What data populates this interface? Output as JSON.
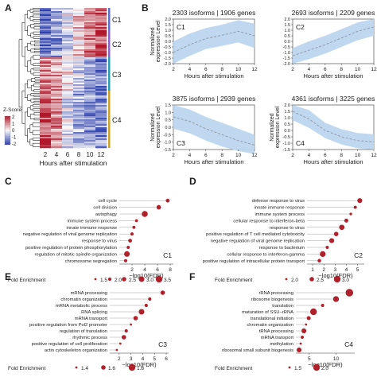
{
  "panel_letters": [
    "A",
    "B",
    "C",
    "D",
    "E",
    "F"
  ],
  "heatmap": {
    "x_ticks": [
      "2",
      "4",
      "6",
      "8",
      "10",
      "12"
    ],
    "xlabel": "Hours after stimulation",
    "legend_title": "Z-Score",
    "legend_ticks": [
      "2",
      "1",
      "0",
      "-1",
      "-2"
    ],
    "clusters": [
      {
        "label": "C1",
        "color": "#5b6fc9",
        "share": 0.16
      },
      {
        "label": "C2",
        "color": "#8a63c7",
        "share": 0.19
      },
      {
        "label": "C3",
        "color": "#2b9bb0",
        "share": 0.24
      },
      {
        "label": "C4",
        "color": "#c9a227",
        "share": 0.41
      }
    ],
    "colors": {
      "high": "#b2182b",
      "mid": "#f7f7f7",
      "low": "#2c3fae"
    }
  },
  "colors": {
    "band": "#bcd6ef",
    "mean_line": "#8f9aa8",
    "dot": "#b0212b",
    "stem": "#888888"
  },
  "chart_data": [
    {
      "type": "line",
      "cluster": "C1",
      "title": "2303 isoforms | 1906 genes",
      "xlabel": "Hours after stimulation",
      "ylabel": "Normalized expression Level",
      "x": [
        2,
        4,
        6,
        8,
        10,
        12
      ],
      "mean": [
        -1.0,
        -0.3,
        0.25,
        0.55,
        0.9,
        0.5
      ],
      "lower": [
        -2.0,
        -1.3,
        -0.7,
        -0.4,
        -0.1,
        -0.6
      ],
      "upper": [
        0.0,
        0.7,
        1.2,
        1.5,
        1.9,
        1.6
      ],
      "xlim": [
        2,
        12
      ],
      "ylim": [
        -2,
        2
      ],
      "x_ticks": [
        "2",
        "4",
        "6",
        "8",
        "10",
        "12"
      ],
      "y_ticks": [
        "-2.0",
        "-1.5",
        "-1.0",
        "-0.5",
        "0.0",
        "0.5",
        "1.0",
        "1.5",
        "2.0"
      ]
    },
    {
      "type": "line",
      "cluster": "C2",
      "title": "2693 isoforms | 2209 genes",
      "xlabel": "Hours after stimulation",
      "ylabel": "",
      "x": [
        2,
        4,
        6,
        8,
        10,
        12
      ],
      "mean": [
        -1.3,
        -0.8,
        -0.3,
        0.3,
        0.9,
        1.3
      ],
      "lower": [
        -2.0,
        -1.6,
        -1.1,
        -0.5,
        0.1,
        0.5
      ],
      "upper": [
        -0.6,
        0.0,
        0.5,
        1.1,
        1.7,
        2.0
      ],
      "xlim": [
        2,
        12
      ],
      "ylim": [
        -2,
        2
      ],
      "x_ticks": [
        "2",
        "4",
        "6",
        "8",
        "10",
        "12"
      ],
      "y_ticks": [
        "-2.0",
        "-1.5",
        "-1.0",
        "-0.5",
        "0.0",
        "0.5",
        "1.0",
        "1.5",
        "2.0"
      ]
    },
    {
      "type": "line",
      "cluster": "C3",
      "title": "3875 isoforms | 2939 genes",
      "xlabel": "Hours after stimulation",
      "ylabel": "Normalized expression Level",
      "x": [
        2,
        4,
        6,
        8,
        10,
        12
      ],
      "mean": [
        0.7,
        0.4,
        -0.1,
        -0.5,
        -0.9,
        -1.2
      ],
      "lower": [
        -0.1,
        -0.4,
        -0.9,
        -1.3,
        -1.6,
        -1.8
      ],
      "upper": [
        1.5,
        1.2,
        0.7,
        0.3,
        -0.1,
        -0.5
      ],
      "xlim": [
        2,
        12
      ],
      "ylim": [
        -1.5,
        1.5
      ],
      "x_ticks": [
        "2",
        "4",
        "6",
        "8",
        "10",
        "12"
      ],
      "y_ticks": [
        "-1.5",
        "-1.0",
        "-0.5",
        "0.0",
        "0.5",
        "1.0",
        "1.5"
      ]
    },
    {
      "type": "line",
      "cluster": "C4",
      "title": "4361 isoforms | 3225 genes",
      "xlabel": "Hours after stimulation",
      "ylabel": "Normalized expression Level",
      "x": [
        2,
        4,
        6,
        8,
        10,
        12
      ],
      "mean": [
        1.5,
        0.9,
        0.0,
        -0.5,
        -0.8,
        -0.9
      ],
      "lower": [
        0.8,
        0.2,
        -0.6,
        -1.1,
        -1.4,
        -1.5
      ],
      "upper": [
        2.0,
        1.6,
        0.6,
        0.1,
        -0.2,
        -0.3
      ],
      "xlim": [
        2,
        12
      ],
      "ylim": [
        -1.5,
        2.0
      ],
      "x_ticks": [
        "2",
        "4",
        "6",
        "8",
        "10",
        "12"
      ],
      "y_ticks": [
        "-1.5",
        "-1.0",
        "-0.5",
        "0.0",
        "0.5",
        "1.0",
        "1.5",
        "2.0"
      ]
    },
    {
      "type": "scatter",
      "cluster": "C1",
      "xlabel": "−log10(FDR)",
      "categories": [
        "cell cycle",
        "cell division",
        "autophagy",
        "immune system process",
        "innate immune response",
        "negative regulation of viral genome replication",
        "response to virus",
        "positive regulation of protein phosphorylation",
        "regulation of mitotic spindle organization",
        "chromosome segregation"
      ],
      "values": [
        7.6,
        6.2,
        4.0,
        2.7,
        2.3,
        2.0,
        1.7,
        1.4,
        1.2,
        1.0
      ],
      "fold_enrichment": [
        2.2,
        2.5,
        3.2,
        1.8,
        1.9,
        2.0,
        2.2,
        1.9,
        3.0,
        2.0
      ],
      "xlim": [
        0,
        8.5
      ],
      "x_ticks": [
        "2",
        "4",
        "6",
        "8"
      ],
      "legend_title": "Fold Enrichment",
      "legend_values": [
        "1.5",
        "2.0",
        "2.5",
        "3.0",
        "3.5"
      ]
    },
    {
      "type": "scatter",
      "cluster": "C2",
      "xlabel": "−log10(FDR)",
      "categories": [
        "defense response to virus",
        "innate immune response",
        "immune system process",
        "cellular response to interferon-beta",
        "response to virus",
        "positive regulation of T cell mediated cytotoxicity",
        "negative regulation of viral genome replication",
        "response to bacterium",
        "cellular response to interferon-gamma",
        "positive regulation of intracellular protein transport"
      ],
      "values": [
        5.2,
        4.8,
        4.4,
        4.0,
        3.6,
        3.1,
        2.7,
        2.3,
        1.9,
        1.6
      ],
      "fold_enrichment": [
        2.6,
        2.2,
        2.1,
        2.4,
        2.7,
        2.5,
        2.6,
        2.2,
        2.8,
        2.3
      ],
      "xlim": [
        0.5,
        5.6
      ],
      "x_ticks": [
        "1",
        "2",
        "3",
        "4",
        "5"
      ],
      "legend_title": "Fold Enrichment",
      "legend_values": [
        "2.0",
        "2.5",
        "3.0"
      ]
    },
    {
      "type": "scatter",
      "cluster": "C3",
      "xlabel": "−log10(FDR)",
      "categories": [
        "mRNA processing",
        "chromatin organization",
        "mRNA metabolic process",
        "RNA splicing",
        "mRNA transport",
        "positive regulation from Pol2 promoter",
        "regulation of translation",
        "rhythmic process",
        "positive regulation of cell proliferation",
        "actin cytoskeleton organization"
      ],
      "values": [
        5.7,
        4.6,
        4.3,
        3.9,
        3.4,
        3.0,
        2.6,
        2.4,
        2.1,
        1.8
      ],
      "fold_enrichment": [
        1.6,
        1.5,
        1.5,
        1.7,
        1.6,
        1.4,
        1.5,
        1.6,
        1.4,
        1.4
      ],
      "xlim": [
        1.2,
        6.2
      ],
      "x_ticks": [
        "2",
        "3",
        "4",
        "5",
        "6"
      ],
      "legend_title": "Fold Enrichment",
      "legend_values": [
        "1.4",
        "1.6",
        "1.8"
      ]
    },
    {
      "type": "scatter",
      "cluster": "C4",
      "xlabel": "−log10(FDR)",
      "categories": [
        "rRNA processing",
        "ribosome biogenesis",
        "translation",
        "maturation of SSU−rRNA",
        "translational initiation",
        "chromatin organization",
        "tRNA processing",
        "mRNA transport",
        "methylation",
        "ribosomal small subunit biogenesis"
      ],
      "values": [
        12.5,
        10.0,
        7.5,
        5.8,
        4.9,
        4.4,
        4.0,
        3.7,
        3.4,
        3.1
      ],
      "fold_enrichment": [
        2.1,
        1.9,
        1.6,
        2.0,
        1.7,
        1.5,
        1.8,
        1.6,
        1.5,
        1.8
      ],
      "xlim": [
        2.5,
        13.5
      ],
      "x_ticks": [
        "5",
        "10"
      ],
      "legend_title": "Fold Enrichment",
      "legend_values": [
        "1.5",
        "2.0"
      ]
    }
  ]
}
